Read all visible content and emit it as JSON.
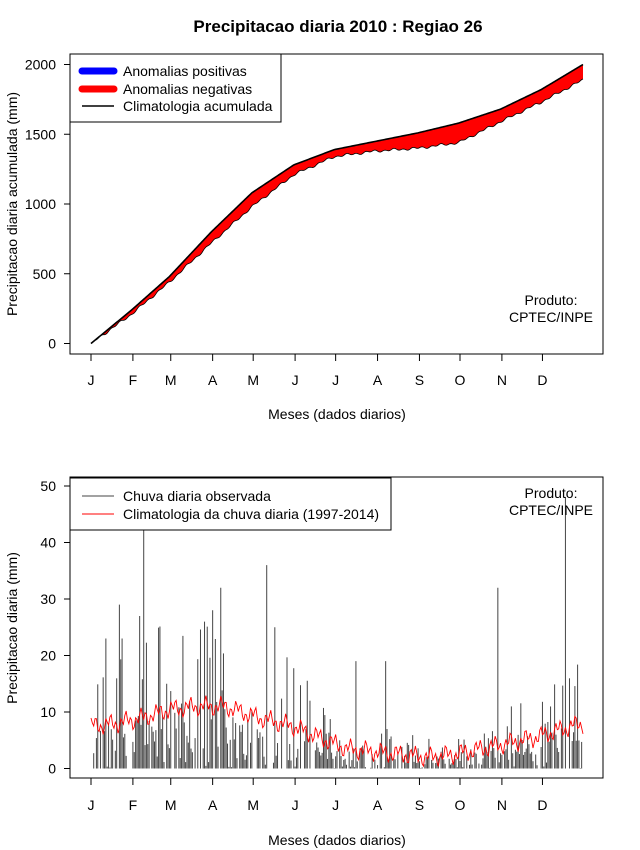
{
  "chart_data": [
    {
      "type": "area",
      "title": "Precipitacao diaria 2010 : Regiao 26",
      "xlabel": "Meses (dados diarios)",
      "ylabel": "Precipitacao diaria acumulada (mm)",
      "xlim": [
        1,
        365
      ],
      "ylim": [
        0,
        2000
      ],
      "x_tick_labels": [
        "J",
        "F",
        "M",
        "A",
        "M",
        "J",
        "J",
        "A",
        "S",
        "O",
        "N",
        "D"
      ],
      "y_ticks": [
        0,
        500,
        1000,
        1500,
        2000
      ],
      "legend": {
        "placement": "top-left",
        "entries": [
          {
            "label": "Anomalias positivas",
            "color": "#0000ff"
          },
          {
            "label": "Anomalias negativas",
            "color": "#ff0000"
          },
          {
            "label": "Climatologia acumulada",
            "color": "#000000"
          }
        ]
      },
      "annotation": [
        "Produto:",
        "CPTEC/INPE"
      ],
      "climatology_points": {
        "day": [
          1,
          31,
          59,
          90,
          120,
          151,
          181,
          212,
          243,
          273,
          304,
          334,
          365
        ],
        "value": [
          0,
          240,
          480,
          800,
          1080,
          1280,
          1390,
          1450,
          1510,
          1580,
          1680,
          1820,
          2000
        ]
      },
      "observed_points": {
        "day": [
          1,
          31,
          59,
          90,
          120,
          151,
          181,
          212,
          243,
          273,
          304,
          334,
          365
        ],
        "value": [
          0,
          210,
          440,
          720,
          980,
          1210,
          1340,
          1380,
          1400,
          1440,
          1590,
          1730,
          1890
        ]
      }
    },
    {
      "type": "bar",
      "xlabel": "Meses (dados diarios)",
      "ylabel": "Precipitacao diaria (mm)",
      "xlim": [
        1,
        365
      ],
      "ylim": [
        0,
        50
      ],
      "x_tick_labels": [
        "J",
        "F",
        "M",
        "A",
        "M",
        "J",
        "J",
        "A",
        "S",
        "O",
        "N",
        "D"
      ],
      "y_ticks": [
        0,
        10,
        20,
        30,
        40,
        50
      ],
      "legend": {
        "placement": "top-left",
        "entries": [
          {
            "label": "Chuva diaria observada",
            "color": "#444444"
          },
          {
            "label": "Climatologia da chuva diaria (1997-2014)",
            "color": "#ff0000"
          }
        ]
      },
      "annotation": [
        "Produto:",
        "CPTEC/INPE"
      ],
      "notable_peaks": [
        {
          "day": 12,
          "value": 23
        },
        {
          "day": 22,
          "value": 29
        },
        {
          "day": 24,
          "value": 23
        },
        {
          "day": 37,
          "value": 27
        },
        {
          "day": 40,
          "value": 43
        },
        {
          "day": 57,
          "value": 15
        },
        {
          "day": 85,
          "value": 26
        },
        {
          "day": 91,
          "value": 28
        },
        {
          "day": 97,
          "value": 32
        },
        {
          "day": 131,
          "value": 36
        },
        {
          "day": 137,
          "value": 25
        },
        {
          "day": 197,
          "value": 19
        },
        {
          "day": 219,
          "value": 19
        },
        {
          "day": 302,
          "value": 32
        },
        {
          "day": 352,
          "value": 48
        }
      ]
    }
  ]
}
